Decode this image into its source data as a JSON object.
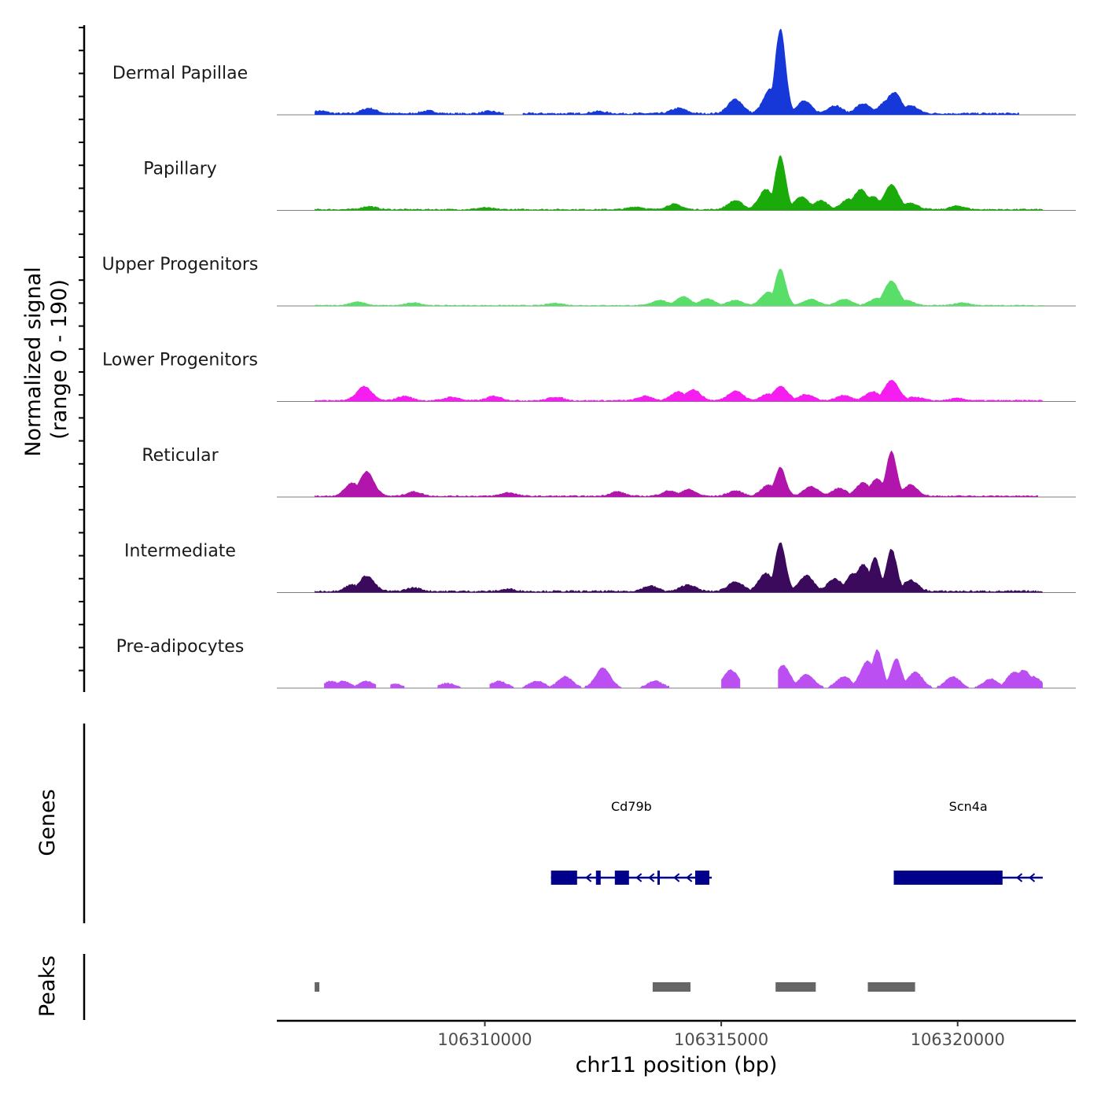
{
  "chart_data": {
    "type": "area",
    "title": "",
    "chromosome": "chr11",
    "xlabel": "chr11 position (bp)",
    "ylabel_line1": "Normalized signal",
    "ylabel_line2": "(range 0 - 190)",
    "ylim": [
      0,
      190
    ],
    "xlim": [
      106305600,
      106322500
    ],
    "x_ticks": [
      106310000,
      106315000,
      106320000
    ],
    "x_tick_labels": [
      "106310000",
      "106315000",
      "106320000"
    ],
    "tracks": [
      {
        "name": "Dermal Papillae",
        "color": "#1638d8",
        "peaks": [
          [
            106306500,
            6
          ],
          [
            106307550,
            12
          ],
          [
            106308800,
            6
          ],
          [
            106310100,
            5
          ],
          [
            106312400,
            5
          ],
          [
            106314100,
            12
          ],
          [
            106315300,
            32
          ],
          [
            106316050,
            55
          ],
          [
            106316250,
            190
          ],
          [
            106316750,
            28
          ],
          [
            106317400,
            18
          ],
          [
            106318000,
            22
          ],
          [
            106318500,
            28
          ],
          [
            106318650,
            48
          ],
          [
            106319000,
            18
          ]
        ],
        "segments": [
          [
            106306400,
            106310400
          ],
          [
            106310800,
            106321300
          ]
        ],
        "base": 4
      },
      {
        "name": "Papillary",
        "color": "#1aab0a",
        "peaks": [
          [
            106307550,
            7
          ],
          [
            106310000,
            4
          ],
          [
            106313200,
            6
          ],
          [
            106314000,
            12
          ],
          [
            106315300,
            20
          ],
          [
            106315950,
            45
          ],
          [
            106316250,
            120
          ],
          [
            106316700,
            28
          ],
          [
            106317100,
            20
          ],
          [
            106317700,
            24
          ],
          [
            106317950,
            45
          ],
          [
            106318200,
            30
          ],
          [
            106318600,
            55
          ],
          [
            106319000,
            15
          ],
          [
            106320000,
            8
          ]
        ],
        "segments": [
          [
            106306400,
            106321800
          ]
        ],
        "base": 3
      },
      {
        "name": "Upper Progenitors",
        "color": "#5ade6a",
        "peaks": [
          [
            106307300,
            8
          ],
          [
            106308500,
            6
          ],
          [
            106311500,
            5
          ],
          [
            106313700,
            12
          ],
          [
            106314200,
            20
          ],
          [
            106314700,
            15
          ],
          [
            106315300,
            12
          ],
          [
            106316000,
            30
          ],
          [
            106316250,
            82
          ],
          [
            106316900,
            14
          ],
          [
            106317600,
            14
          ],
          [
            106318300,
            16
          ],
          [
            106318600,
            55
          ],
          [
            106318900,
            12
          ],
          [
            106320100,
            6
          ]
        ],
        "segments": [
          [
            106306400,
            106321800
          ]
        ],
        "base": 2
      },
      {
        "name": "Lower Progenitors",
        "color": "#f51df0",
        "peaks": [
          [
            106307450,
            32
          ],
          [
            106308300,
            10
          ],
          [
            106309300,
            8
          ],
          [
            106310200,
            10
          ],
          [
            106311500,
            8
          ],
          [
            106313400,
            10
          ],
          [
            106314100,
            20
          ],
          [
            106314400,
            25
          ],
          [
            106315300,
            22
          ],
          [
            106316000,
            15
          ],
          [
            106316250,
            32
          ],
          [
            106316800,
            14
          ],
          [
            106317600,
            12
          ],
          [
            106318200,
            20
          ],
          [
            106318600,
            45
          ],
          [
            106319100,
            8
          ],
          [
            106320000,
            5
          ]
        ],
        "segments": [
          [
            106306400,
            106321800
          ]
        ],
        "base": 3
      },
      {
        "name": "Reticular",
        "color": "#b215ac",
        "peaks": [
          [
            106307200,
            30
          ],
          [
            106307500,
            55
          ],
          [
            106308500,
            10
          ],
          [
            106310500,
            8
          ],
          [
            106312800,
            10
          ],
          [
            106313900,
            12
          ],
          [
            106314300,
            15
          ],
          [
            106315300,
            12
          ],
          [
            106316000,
            25
          ],
          [
            106316250,
            65
          ],
          [
            106316900,
            22
          ],
          [
            106317500,
            18
          ],
          [
            106318000,
            30
          ],
          [
            106318300,
            38
          ],
          [
            106318600,
            100
          ],
          [
            106319000,
            25
          ]
        ],
        "segments": [
          [
            106306400,
            106321700
          ]
        ],
        "base": 3
      },
      {
        "name": "Intermediate",
        "color": "#3b0a5c",
        "peaks": [
          [
            106307200,
            15
          ],
          [
            106307500,
            35
          ],
          [
            106308500,
            8
          ],
          [
            106310500,
            5
          ],
          [
            106313500,
            12
          ],
          [
            106314300,
            15
          ],
          [
            106315300,
            22
          ],
          [
            106315950,
            40
          ],
          [
            106316250,
            110
          ],
          [
            106316800,
            35
          ],
          [
            106317400,
            28
          ],
          [
            106317800,
            40
          ],
          [
            106318000,
            60
          ],
          [
            106318250,
            75
          ],
          [
            106318600,
            95
          ],
          [
            106319000,
            25
          ]
        ],
        "segments": [
          [
            106306400,
            106321800
          ]
        ],
        "base": 4
      },
      {
        "name": "Pre-adipocytes",
        "color": "#bc4ff2",
        "peaks": [
          [
            106306750,
            15
          ],
          [
            106307000,
            15
          ],
          [
            106307500,
            15
          ],
          [
            106308100,
            8
          ],
          [
            106309200,
            10
          ],
          [
            106310300,
            15
          ],
          [
            106311100,
            15
          ],
          [
            106311700,
            25
          ],
          [
            106312500,
            45
          ],
          [
            106313600,
            15
          ],
          [
            106315200,
            40
          ],
          [
            106316300,
            50
          ],
          [
            106316800,
            30
          ],
          [
            106317600,
            25
          ],
          [
            106318100,
            60
          ],
          [
            106318300,
            85
          ],
          [
            106318700,
            65
          ],
          [
            106319100,
            35
          ],
          [
            106319900,
            25
          ],
          [
            106320700,
            20
          ],
          [
            106321200,
            35
          ],
          [
            106321400,
            40
          ],
          [
            106321600,
            25
          ]
        ],
        "segments": [
          [
            106306600,
            106307700
          ],
          [
            106308000,
            106308300
          ],
          [
            106309000,
            106309800
          ],
          [
            106310100,
            106313900
          ],
          [
            106315000,
            106315400
          ],
          [
            106316200,
            106321800
          ]
        ],
        "base": 0
      }
    ],
    "genes": [
      {
        "name": "Cd79b",
        "start": 106311400,
        "end": 106314800,
        "strand": "-",
        "color": "#00008b",
        "exons": [
          [
            106311400,
            106311950
          ],
          [
            106312350,
            106312450
          ],
          [
            106312750,
            106313050
          ],
          [
            106313650,
            106313700
          ],
          [
            106314450,
            106314750
          ]
        ]
      },
      {
        "name": "Scn4a",
        "start": 106318650,
        "end": 106321800,
        "strand": "-",
        "color": "#00008b",
        "exons": [
          [
            106318650,
            106320950
          ]
        ]
      }
    ],
    "genes_track_label": "Genes",
    "peaks_track_label": "Peaks",
    "peak_regions": [
      [
        106306400,
        106306500
      ],
      [
        106313550,
        106314350
      ],
      [
        106316150,
        106317000
      ],
      [
        106318100,
        106319100
      ]
    ],
    "peak_color": "#666666"
  }
}
